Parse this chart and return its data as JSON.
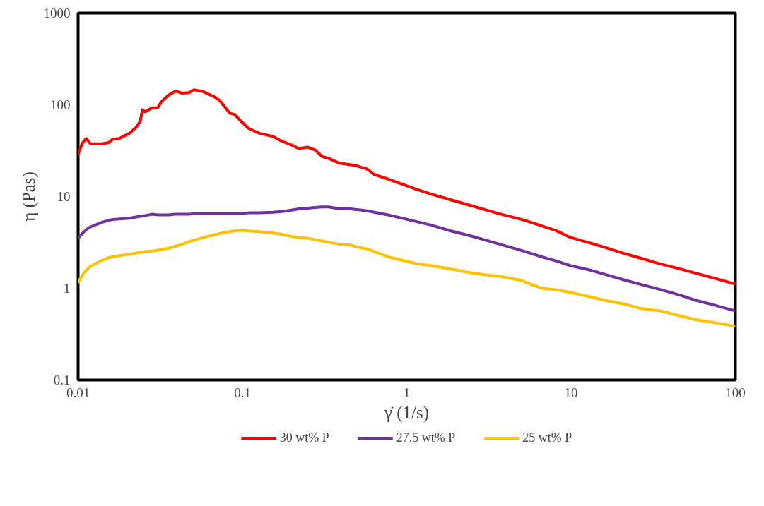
{
  "chart_data": {
    "type": "line",
    "xlabel": "γ̇ (1/s)",
    "ylabel": "η (Pas)",
    "log": "xy",
    "grid": false,
    "legend": "bottom",
    "marker": "none",
    "line_style": "solid",
    "xlim": [
      0.01,
      100
    ],
    "ylim": [
      0.1,
      1000
    ],
    "xticks": [
      {
        "value": 0.01,
        "label": "0.01"
      },
      {
        "value": 0.1,
        "label": "0.1"
      },
      1,
      10,
      100
    ],
    "yticks": [
      {
        "value": 0.1,
        "label": "0.1"
      },
      1,
      10,
      100,
      1000
    ],
    "x": [
      0.01,
      0.0106,
      0.0112,
      0.0119,
      0.014,
      0.0154,
      0.0162,
      0.0178,
      0.0206,
      0.0228,
      0.0239,
      0.0246,
      0.0256,
      0.0282,
      0.0305,
      0.0321,
      0.0354,
      0.039,
      0.043,
      0.0474,
      0.0508,
      0.0577,
      0.0668,
      0.0722,
      0.0836,
      0.0895,
      0.0988,
      0.109,
      0.126,
      0.153,
      0.173,
      0.196,
      0.22,
      0.25,
      0.276,
      0.305,
      0.336,
      0.389,
      0.451,
      0.497,
      0.575,
      0.634,
      0.771,
      1.14,
      1.39,
      1.86,
      2.49,
      3.03,
      3.69,
      4.95,
      6.64,
      8.08,
      9.84,
      13.2,
      16.0,
      21.5,
      26.2,
      35.1,
      47.1,
      57.3,
      76.7,
      100
    ],
    "series": [
      {
        "name": "30 wt% P",
        "color": "#ff0000",
        "values": [
          28.7,
          38.2,
          42.9,
          37.6,
          37.6,
          38.8,
          42.2,
          42.9,
          49.1,
          58.1,
          66.4,
          88.2,
          83.9,
          92.7,
          92.7,
          108,
          127,
          141,
          134,
          136,
          146,
          139,
          123,
          113,
          81.1,
          78.5,
          65.3,
          55.2,
          49.1,
          45.2,
          40.2,
          36.9,
          33.4,
          34.5,
          32.3,
          27.3,
          26.0,
          23.1,
          22.3,
          21.6,
          19.9,
          17.4,
          15.5,
          12.0,
          10.7,
          9.2,
          7.91,
          7.16,
          6.47,
          5.66,
          4.79,
          4.26,
          3.6,
          3.1,
          2.8,
          2.37,
          2.14,
          1.84,
          1.61,
          1.46,
          1.27,
          1.11
        ]
      },
      {
        "name": "27.5 wt% P",
        "color": "#7030a0",
        "values": [
          3.51,
          3.95,
          4.36,
          4.67,
          5.25,
          5.52,
          5.61,
          5.71,
          5.8,
          6.0,
          6.1,
          6.1,
          6.21,
          6.41,
          6.31,
          6.31,
          6.31,
          6.41,
          6.41,
          6.41,
          6.53,
          6.53,
          6.53,
          6.53,
          6.53,
          6.53,
          6.53,
          6.64,
          6.64,
          6.75,
          6.86,
          7.09,
          7.33,
          7.46,
          7.59,
          7.71,
          7.71,
          7.33,
          7.33,
          7.21,
          6.98,
          6.75,
          6.31,
          5.34,
          4.91,
          4.22,
          3.69,
          3.34,
          3.02,
          2.6,
          2.2,
          1.99,
          1.77,
          1.57,
          1.42,
          1.22,
          1.11,
          0.967,
          0.832,
          0.74,
          0.647,
          0.566
        ]
      },
      {
        "name": "25 wt% P",
        "color": "#ffc000",
        "values": [
          1.14,
          1.4,
          1.57,
          1.74,
          2.02,
          2.16,
          2.2,
          2.27,
          2.35,
          2.43,
          2.47,
          2.47,
          2.51,
          2.55,
          2.6,
          2.64,
          2.73,
          2.87,
          3.02,
          3.23,
          3.34,
          3.57,
          3.82,
          3.95,
          4.15,
          4.22,
          4.29,
          4.22,
          4.15,
          4.01,
          3.88,
          3.69,
          3.57,
          3.51,
          3.4,
          3.28,
          3.17,
          3.02,
          2.97,
          2.82,
          2.69,
          2.51,
          2.2,
          1.86,
          1.77,
          1.62,
          1.47,
          1.4,
          1.35,
          1.22,
          1.0,
          0.967,
          0.904,
          0.804,
          0.74,
          0.669,
          0.605,
          0.566,
          0.495,
          0.455,
          0.419,
          0.385
        ]
      }
    ]
  }
}
